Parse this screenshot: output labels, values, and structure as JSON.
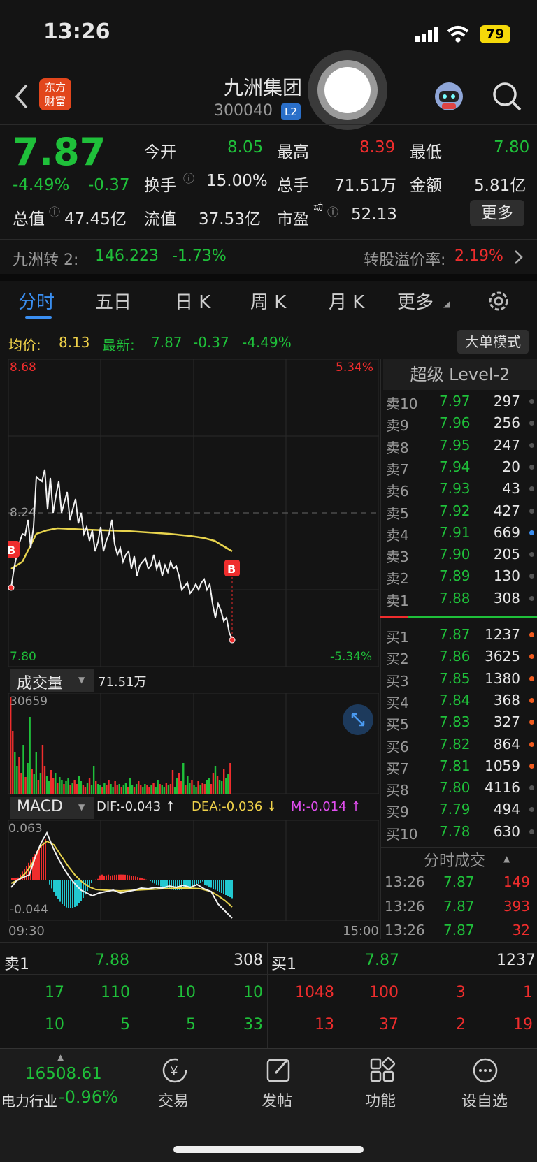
{
  "status": {
    "time": "13:26",
    "battery": "79"
  },
  "header": {
    "title": "九洲集团",
    "code": "300040",
    "badge": "L2",
    "logo_text_1": "东方",
    "logo_text_2": "财富"
  },
  "quote": {
    "price": "7.87",
    "pct": "-4.49%",
    "chg": "-0.37",
    "open_label": "今开",
    "open": "8.05",
    "high_label": "最高",
    "high": "8.39",
    "low_label": "最低",
    "low": "7.80",
    "turnover_label": "换手",
    "turnover": "15.00%",
    "volume_label": "总手",
    "volume": "71.51万",
    "amount_label": "金额",
    "amount": "5.81亿",
    "mcap_label": "总值",
    "mcap": "47.45亿",
    "float_label": "流值",
    "float": "37.53亿",
    "pe_label": "市盈",
    "pe_sup": "动",
    "pe": "52.13",
    "more": "更多"
  },
  "bond": {
    "name": "九洲转 2:",
    "price": "146.223",
    "pct": "-1.73%",
    "premium_label": "转股溢价率:",
    "premium": "2.19%"
  },
  "tabs": [
    "分时",
    "五日",
    "日 K",
    "周 K",
    "月 K",
    "更多"
  ],
  "info": {
    "avg_label": "均价:",
    "avg": "8.13",
    "latest_label": "最新:",
    "latest": "7.87",
    "chg": "-0.37",
    "pct": "-4.49%",
    "bigorder": "大单模式"
  },
  "chart_labels": {
    "top_price": "8.68",
    "top_pct": "5.34%",
    "mid_price": "8.24",
    "bottom_price": "7.80",
    "bottom_pct": "-5.34%",
    "b_marker": "B"
  },
  "volume": {
    "title": "成交量",
    "total": "71.51万",
    "max": "30659"
  },
  "macd": {
    "title": "MACD",
    "dif": "DIF:-0.043 ↑",
    "dea": "DEA:-0.036 ↓",
    "m": "M:-0.014 ↑",
    "top": "0.063",
    "bottom": "-0.044",
    "t_start": "09:30",
    "t_end": "15:00"
  },
  "orderbook": {
    "title": "超级 Level-2",
    "asks": [
      {
        "label": "卖10",
        "price": "7.97",
        "vol": "297"
      },
      {
        "label": "卖9",
        "price": "7.96",
        "vol": "256"
      },
      {
        "label": "卖8",
        "price": "7.95",
        "vol": "247"
      },
      {
        "label": "卖7",
        "price": "7.94",
        "vol": "20"
      },
      {
        "label": "卖6",
        "price": "7.93",
        "vol": "43"
      },
      {
        "label": "卖5",
        "price": "7.92",
        "vol": "427"
      },
      {
        "label": "卖4",
        "price": "7.91",
        "vol": "669"
      },
      {
        "label": "卖3",
        "price": "7.90",
        "vol": "205"
      },
      {
        "label": "卖2",
        "price": "7.89",
        "vol": "130"
      },
      {
        "label": "卖1",
        "price": "7.88",
        "vol": "308"
      }
    ],
    "bids": [
      {
        "label": "买1",
        "price": "7.87",
        "vol": "1237"
      },
      {
        "label": "买2",
        "price": "7.86",
        "vol": "3625"
      },
      {
        "label": "买3",
        "price": "7.85",
        "vol": "1380"
      },
      {
        "label": "买4",
        "price": "7.84",
        "vol": "368"
      },
      {
        "label": "买5",
        "price": "7.83",
        "vol": "327"
      },
      {
        "label": "买6",
        "price": "7.82",
        "vol": "864"
      },
      {
        "label": "买7",
        "price": "7.81",
        "vol": "1059"
      },
      {
        "label": "买8",
        "price": "7.80",
        "vol": "4116"
      },
      {
        "label": "买9",
        "price": "7.79",
        "vol": "494"
      },
      {
        "label": "买10",
        "price": "7.78",
        "vol": "630"
      }
    ],
    "ticks_title": "分时成交",
    "ticks": [
      {
        "time": "13:26",
        "price": "7.87",
        "vol": "149"
      },
      {
        "time": "13:26",
        "price": "7.87",
        "vol": "393"
      },
      {
        "time": "13:26",
        "price": "7.87",
        "vol": "32"
      }
    ]
  },
  "queue": {
    "sell_label": "卖1",
    "sell_price": "7.88",
    "sell_vol": "308",
    "buy_label": "买1",
    "buy_price": "7.87",
    "buy_vol": "1237",
    "sell_rows": [
      [
        "17",
        "110",
        "10",
        "10"
      ],
      [
        "10",
        "5",
        "5",
        "33"
      ]
    ],
    "buy_rows": [
      [
        "1048",
        "100",
        "3",
        "1"
      ],
      [
        "13",
        "37",
        "2",
        "19"
      ]
    ]
  },
  "bottom": {
    "index_value": "16508.61",
    "index_name": "电力行业",
    "index_pct": "-0.96%",
    "trade": "交易",
    "post": "发帖",
    "func": "功能",
    "watch": "设自选"
  }
}
